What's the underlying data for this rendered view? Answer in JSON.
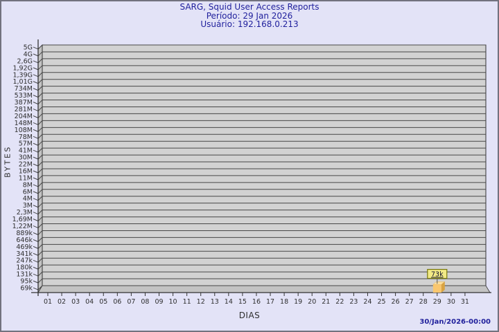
{
  "header": {
    "title": "SARG, Squid User Access Reports",
    "period": "Período: 29 Jan 2026",
    "user": "Usuário: 192.168.0.213"
  },
  "footer": {
    "timestamp": "30/Jan/2026-00:00"
  },
  "chart_data": {
    "type": "bar",
    "title": "SARG, Squid User Access Reports",
    "subtitle": "Período: 29 Jan 2026 — Usuário: 192.168.0.213",
    "xlabel": "DIAS",
    "ylabel": "BYTES",
    "y_scale": "log",
    "y_min": 69000,
    "y_max": 5000000000,
    "y_tick_labels": [
      "5G",
      "4G",
      "2,6G",
      "1,92G",
      "1,39G",
      "1,01G",
      "734M",
      "533M",
      "387M",
      "281M",
      "204M",
      "148M",
      "108M",
      "78M",
      "57M",
      "41M",
      "30M",
      "22M",
      "16M",
      "11M",
      "8M",
      "6M",
      "4M",
      "3M",
      "2,3M",
      "1,69M",
      "1,22M",
      "889k",
      "646k",
      "469k",
      "341k",
      "247k",
      "180k",
      "131k",
      "95k",
      "69k"
    ],
    "categories": [
      "01",
      "02",
      "03",
      "04",
      "05",
      "06",
      "07",
      "08",
      "09",
      "10",
      "11",
      "12",
      "13",
      "14",
      "15",
      "16",
      "17",
      "18",
      "19",
      "20",
      "21",
      "22",
      "23",
      "24",
      "25",
      "26",
      "27",
      "28",
      "29",
      "30",
      "31"
    ],
    "series": [
      {
        "name": "bytes",
        "values": [
          0,
          0,
          0,
          0,
          0,
          0,
          0,
          0,
          0,
          0,
          0,
          0,
          0,
          0,
          0,
          0,
          0,
          0,
          0,
          0,
          0,
          0,
          0,
          0,
          0,
          0,
          0,
          0,
          73000,
          0,
          0
        ]
      }
    ],
    "annotations": [
      {
        "x": "29",
        "label": "73k",
        "value": 73000
      }
    ],
    "grid": true,
    "legend": false,
    "colors": {
      "page_bg": "#e3e3f7",
      "panel": "#d2d2d2",
      "wall": "#c3c3c3",
      "grid": "#474747",
      "frame": "#333333",
      "tick_text": "#2e2e2e",
      "title_navy": "#1f1f9c",
      "bar_front": "#fac76f",
      "bar_top": "#fcdf9e",
      "bar_side": "#d9a341",
      "tooltip_bg": "#f2ea85",
      "tooltip_border": "#76760c",
      "tooltip_text": "#101030"
    }
  }
}
